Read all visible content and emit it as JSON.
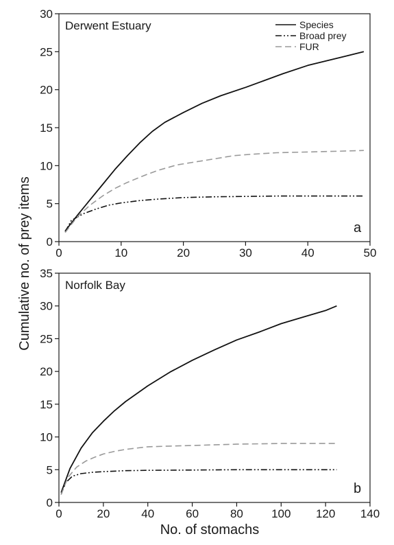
{
  "chart_data": [
    {
      "type": "line",
      "title": "Derwent Estuary",
      "panel_label": "a",
      "xlabel": "",
      "ylabel": "Cumulative no. of prey items",
      "xlim": [
        0,
        50
      ],
      "ylim": [
        0,
        30
      ],
      "xticks": [
        0,
        10,
        20,
        30,
        40,
        50
      ],
      "yticks": [
        0,
        5,
        10,
        15,
        20,
        25,
        30
      ],
      "grid": false,
      "legend_position": "top-right",
      "series": [
        {
          "name": "Species",
          "color": "#111111",
          "style": "solid",
          "x": [
            1,
            3,
            5,
            7,
            9,
            11,
            13,
            15,
            17,
            20,
            23,
            26,
            30,
            33,
            36,
            40,
            43,
            46,
            49
          ],
          "y": [
            1.4,
            3.5,
            5.5,
            7.5,
            9.5,
            11.3,
            13.0,
            14.5,
            15.7,
            17.0,
            18.2,
            19.2,
            20.3,
            21.2,
            22.1,
            23.2,
            23.8,
            24.4,
            25.0
          ]
        },
        {
          "name": "Broad prey",
          "color": "#111111",
          "style": "dash-dot-dot",
          "x": [
            1,
            2,
            4,
            6,
            8,
            10,
            13,
            16,
            20,
            25,
            30,
            35,
            40,
            45,
            49
          ],
          "y": [
            1.3,
            2.8,
            3.7,
            4.3,
            4.8,
            5.1,
            5.4,
            5.6,
            5.8,
            5.9,
            5.95,
            6.0,
            6.0,
            6.0,
            6.0
          ]
        },
        {
          "name": "FUR",
          "color": "#999999",
          "style": "dashed",
          "x": [
            1,
            3,
            5,
            7,
            9,
            11,
            14,
            16,
            19,
            22,
            25,
            28,
            31,
            35,
            40,
            45,
            49
          ],
          "y": [
            1.2,
            3.3,
            4.8,
            6.0,
            7.0,
            7.8,
            8.8,
            9.4,
            10.1,
            10.5,
            10.9,
            11.3,
            11.5,
            11.7,
            11.8,
            11.9,
            12.0
          ]
        }
      ]
    },
    {
      "type": "line",
      "title": "Norfolk Bay",
      "panel_label": "b",
      "xlabel": "No. of stomachs",
      "ylabel": "Cumulative no. of prey items",
      "xlim": [
        0,
        140
      ],
      "ylim": [
        0,
        35
      ],
      "xticks": [
        0,
        20,
        40,
        60,
        80,
        100,
        120,
        140
      ],
      "yticks": [
        0,
        5,
        10,
        15,
        20,
        25,
        30,
        35
      ],
      "grid": false,
      "legend_position": "none",
      "series": [
        {
          "name": "Species",
          "color": "#111111",
          "style": "solid",
          "x": [
            1,
            5,
            10,
            15,
            20,
            25,
            30,
            40,
            50,
            60,
            70,
            80,
            90,
            100,
            110,
            120,
            125
          ],
          "y": [
            1.5,
            5.2,
            8.3,
            10.6,
            12.4,
            14.0,
            15.4,
            17.8,
            19.9,
            21.7,
            23.3,
            24.8,
            26.0,
            27.3,
            28.3,
            29.3,
            30.0
          ]
        },
        {
          "name": "Broad prey",
          "color": "#111111",
          "style": "dash-dot-dot",
          "x": [
            1,
            3,
            6,
            10,
            15,
            20,
            30,
            40,
            60,
            80,
            100,
            125
          ],
          "y": [
            1.2,
            3.0,
            4.0,
            4.4,
            4.6,
            4.7,
            4.85,
            4.9,
            4.95,
            5.0,
            5.0,
            5.0
          ]
        },
        {
          "name": "FUR",
          "color": "#999999",
          "style": "dashed",
          "x": [
            1,
            4,
            8,
            12,
            16,
            20,
            25,
            30,
            40,
            50,
            60,
            80,
            100,
            125
          ],
          "y": [
            1.2,
            3.8,
            5.4,
            6.3,
            6.9,
            7.4,
            7.8,
            8.1,
            8.5,
            8.6,
            8.7,
            8.9,
            9.0,
            9.0
          ]
        }
      ]
    }
  ],
  "y_axis_title": "Cumulative no. of prey items",
  "x_axis_title": "No. of stomachs"
}
